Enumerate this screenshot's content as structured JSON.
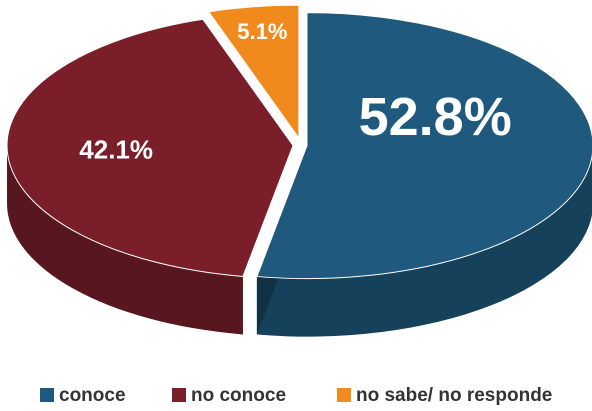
{
  "chart_data": {
    "type": "pie3d",
    "categories": [
      "conoce",
      "no conoce",
      "no sabe/ no responde"
    ],
    "values": [
      52.8,
      42.1,
      5.1
    ],
    "value_labels": [
      "52.8%",
      "42.1%",
      "5.1%"
    ],
    "colors": [
      "#1f5a7e",
      "#7a1f2a",
      "#f08a1c"
    ],
    "legend": "bottom"
  }
}
